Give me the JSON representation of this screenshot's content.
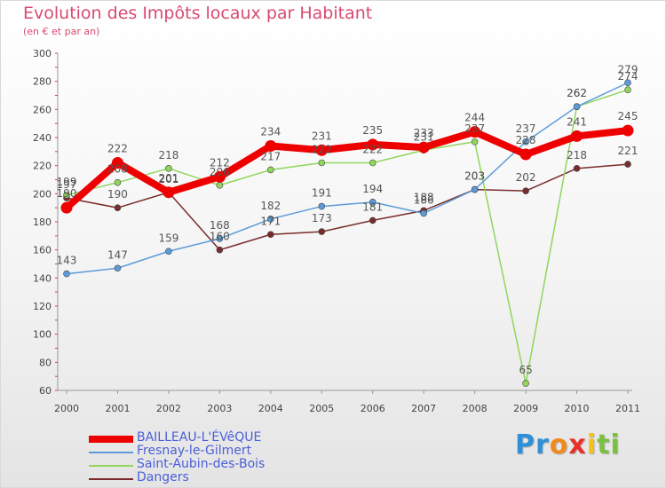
{
  "chart_data": {
    "type": "line",
    "title": "Evolution des Impôts locaux par Habitant",
    "subtitle": "(en € et par an)",
    "x": [
      "2000",
      "2001",
      "2002",
      "2003",
      "2004",
      "2005",
      "2006",
      "2007",
      "2008",
      "2009",
      "2010",
      "2011"
    ],
    "ylim": [
      60,
      300
    ],
    "yticks": [
      60,
      80,
      100,
      120,
      140,
      160,
      180,
      200,
      220,
      240,
      260,
      280,
      300
    ],
    "grid": false,
    "legend_position": "bottom-left",
    "series": [
      {
        "name": "BAILLEAU-L'ÉVêQUE",
        "color": "#ee0000",
        "values": [
          190,
          222,
          201,
          212,
          234,
          231,
          235,
          233,
          244,
          228,
          241,
          245
        ]
      },
      {
        "name": "Fresnay-le-Gilmert",
        "color": "#5c9bd8",
        "values": [
          143,
          147,
          159,
          168,
          182,
          191,
          194,
          186,
          203,
          237,
          262,
          279
        ]
      },
      {
        "name": "Saint-Aubin-des-Bois",
        "color": "#90d65c",
        "values": [
          199,
          208,
          218,
          206,
          217,
          222,
          222,
          231,
          237,
          65,
          262,
          274
        ]
      },
      {
        "name": "Dangers",
        "color": "#7a2c2c",
        "values": [
          197,
          190,
          201,
          160,
          171,
          173,
          181,
          188,
          203,
          202,
          218,
          221
        ]
      }
    ]
  },
  "logo": {
    "letters": [
      "P",
      "r",
      "o",
      "x",
      "i",
      "t",
      "i"
    ],
    "colors": [
      "#2f8fd8",
      "#2f8fd8",
      "#f28a1a",
      "#e8302a",
      "#f2c11a",
      "#7ac142",
      "#7ac142"
    ]
  }
}
